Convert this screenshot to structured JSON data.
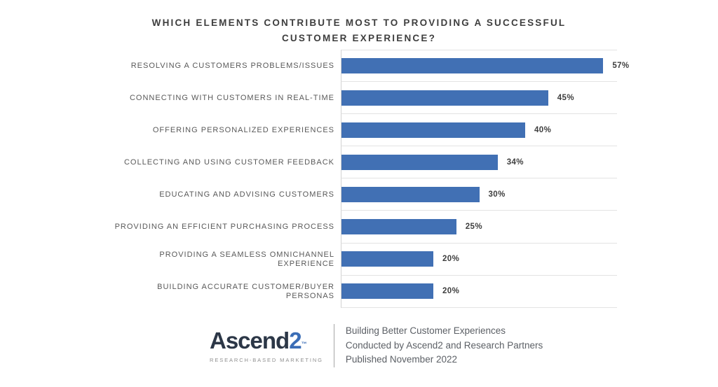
{
  "title": {
    "line1": "WHICH ELEMENTS CONTRIBUTE MOST TO PROVIDING A SUCCESSFUL",
    "line2": "CUSTOMER EXPERIENCE?"
  },
  "chart_data": {
    "type": "bar",
    "orientation": "horizontal",
    "title": "WHICH ELEMENTS CONTRIBUTE MOST TO PROVIDING A SUCCESSFUL CUSTOMER EXPERIENCE?",
    "categories": [
      "RESOLVING A CUSTOMERS PROBLEMS/ISSUES",
      "CONNECTING WITH CUSTOMERS IN REAL-TIME",
      "OFFERING PERSONALIZED EXPERIENCES",
      "COLLECTING AND USING CUSTOMER FEEDBACK",
      "EDUCATING AND ADVISING CUSTOMERS",
      "PROVIDING AN EFFICIENT PURCHASING PROCESS",
      "PROVIDING A SEAMLESS OMNICHANNEL EXPERIENCE",
      "BUILDING ACCURATE CUSTOMER/BUYER PERSONAS"
    ],
    "values": [
      57,
      45,
      40,
      34,
      30,
      25,
      20,
      20
    ],
    "value_suffix": "%",
    "xlabel": "",
    "ylabel": "",
    "xlim": [
      0,
      60
    ],
    "grid": "horizontal-row-separators",
    "legend": "none",
    "bar_color": "#4170b4"
  },
  "footer": {
    "logo": {
      "name": "Ascend",
      "number": "2",
      "trademark": "™",
      "tagline": "RESEARCH-BASED MARKETING"
    },
    "source_lines": [
      "Building Better Customer Experiences",
      "Conducted by Ascend2 and Research Partners",
      "Published November 2022"
    ]
  },
  "colors": {
    "background": "#ffffff",
    "bar": "#4170b4",
    "title_text": "#3e3e3e",
    "category_label_text": "#595959",
    "value_label_text": "#3e3e3e",
    "gridline": "#e3e3e3",
    "axis_line": "#d2d2d2",
    "logo_dark": "#2c3747",
    "logo_blue": "#3a6db6",
    "logo_tagline_text": "#8f8f8f",
    "footer_divider": "#a6a6a6",
    "source_text": "#5c6066"
  }
}
